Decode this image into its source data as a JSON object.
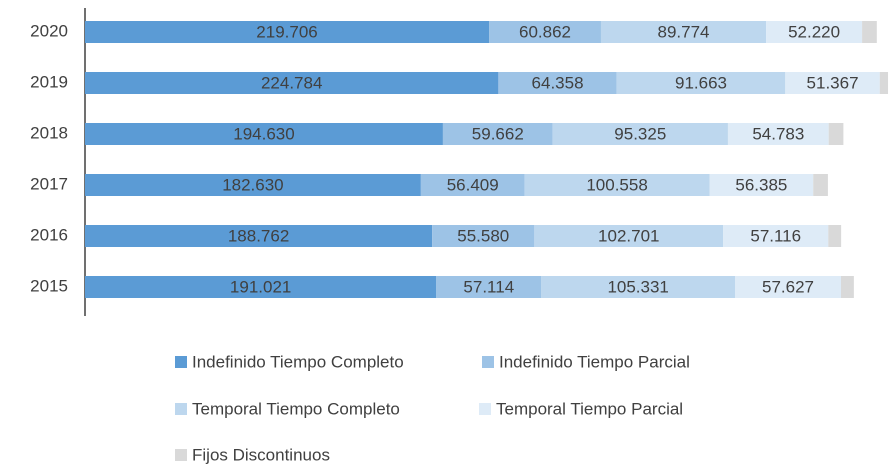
{
  "chart_data": {
    "type": "stacked_bar_horizontal",
    "categories": [
      "2020",
      "2019",
      "2018",
      "2017",
      "2016",
      "2015"
    ],
    "series": [
      {
        "name": "Indefinido Tiempo Completo",
        "color": "#5b9bd5",
        "values": [
          219706,
          224784,
          194630,
          182630,
          188762,
          191021
        ],
        "value_labels": [
          "219.706",
          "224.784",
          "194.630",
          "182.630",
          "188.762",
          "191.021"
        ]
      },
      {
        "name": "Indefinido Tiempo Parcial",
        "color": "#9dc3e6",
        "values": [
          60862,
          64358,
          59662,
          56409,
          55580,
          57114
        ],
        "value_labels": [
          "60.862",
          "64.358",
          "59.662",
          "56.409",
          "55.580",
          "57.114"
        ]
      },
      {
        "name": "Temporal Tiempo Completo",
        "color": "#bdd7ee",
        "values": [
          89774,
          91663,
          95325,
          100558,
          102701,
          105331
        ],
        "value_labels": [
          "89.774",
          "91.663",
          "95.325",
          "100.558",
          "102.701",
          "105.331"
        ]
      },
      {
        "name": "Temporal Tiempo Parcial",
        "color": "#deebf7",
        "values": [
          52220,
          51367,
          54783,
          56385,
          57116,
          57627
        ],
        "value_labels": [
          "52.220",
          "51.367",
          "54.783",
          "56.385",
          "57.116",
          "57.627"
        ]
      },
      {
        "name": "Fijos Discontinuos",
        "color": "#d9d9d9",
        "values": [
          8000,
          4500,
          8000,
          8000,
          7000,
          7000
        ]
      }
    ]
  }
}
